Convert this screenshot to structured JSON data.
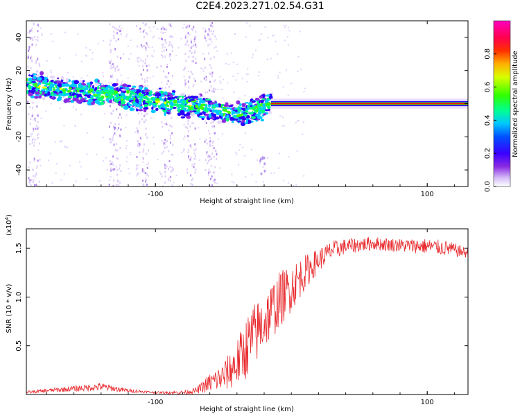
{
  "figure_title": "C2E4.2023.271.02.54.G31",
  "colors": {
    "snr_line": "#e8262a",
    "colormap": [
      "#ffffff",
      "#e6d7fb",
      "#8a2be2",
      "#2a00ff",
      "#00c8ff",
      "#00ff80",
      "#40ff00",
      "#ffff00",
      "#ff9000",
      "#ff0000",
      "#ff00b0"
    ]
  },
  "chart_data": [
    {
      "type": "heatmap",
      "title": "",
      "xlabel": "Height of straight line (km)",
      "ylabel": "Frequency (Hz)",
      "xlim": [
        -195,
        130
      ],
      "ylim": [
        -50,
        50
      ],
      "x_ticks": [
        -100,
        100
      ],
      "y_ticks": [
        -40,
        -20,
        0,
        20,
        40
      ],
      "grid": false,
      "colorbar": {
        "label": "Normalized spectral amplitude",
        "range": [
          0.0,
          1.0
        ],
        "ticks": [
          "0.0",
          "0.2",
          "0.4",
          "0.6",
          "0.8"
        ]
      },
      "ridge": {
        "x": [
          -195,
          -180,
          -160,
          -140,
          -120,
          -100,
          -80,
          -60,
          -40,
          -25,
          -15,
          0,
          20,
          60,
          100,
          130
        ],
        "y": [
          12,
          10,
          7,
          6,
          4,
          2,
          -1,
          -3,
          -6,
          -4,
          0,
          0,
          0,
          0,
          0,
          0
        ]
      },
      "noise_columns_x": [
        -190,
        -130,
        -110,
        -92,
        -75,
        -60
      ]
    },
    {
      "type": "line",
      "title": "",
      "xlabel": "Height of straight line (km)",
      "ylabel": "SNR (10 * v/v)",
      "y_scale_label": "(x10",
      "y_scale_exponent": "4",
      "xlim": [
        -195,
        130
      ],
      "ylim": [
        0,
        1.7
      ],
      "x_ticks": [
        -100,
        100
      ],
      "y_ticks": [
        0.5,
        1.0,
        1.5
      ],
      "y_tick_labels": [
        "0.5",
        "1.0",
        "1.5"
      ],
      "grid": false,
      "series": [
        {
          "x": [
            -195,
            -180,
            -160,
            -140,
            -120,
            -100,
            -80,
            -70,
            -60,
            -50,
            -40,
            -30,
            -20,
            -10,
            0,
            10,
            20,
            30,
            40,
            60,
            80,
            100,
            115,
            130
          ],
          "y": [
            0.02,
            0.04,
            0.06,
            0.08,
            0.04,
            0.02,
            0.02,
            0.04,
            0.12,
            0.18,
            0.32,
            0.55,
            0.75,
            0.95,
            1.1,
            1.25,
            1.38,
            1.48,
            1.52,
            1.55,
            1.53,
            1.52,
            1.5,
            1.45
          ],
          "noise": [
            0.015,
            0.02,
            0.03,
            0.04,
            0.02,
            0.01,
            0.02,
            0.03,
            0.1,
            0.15,
            0.25,
            0.35,
            0.3,
            0.3,
            0.25,
            0.18,
            0.12,
            0.1,
            0.08,
            0.07,
            0.07,
            0.08,
            0.08,
            0.05
          ]
        }
      ]
    }
  ]
}
